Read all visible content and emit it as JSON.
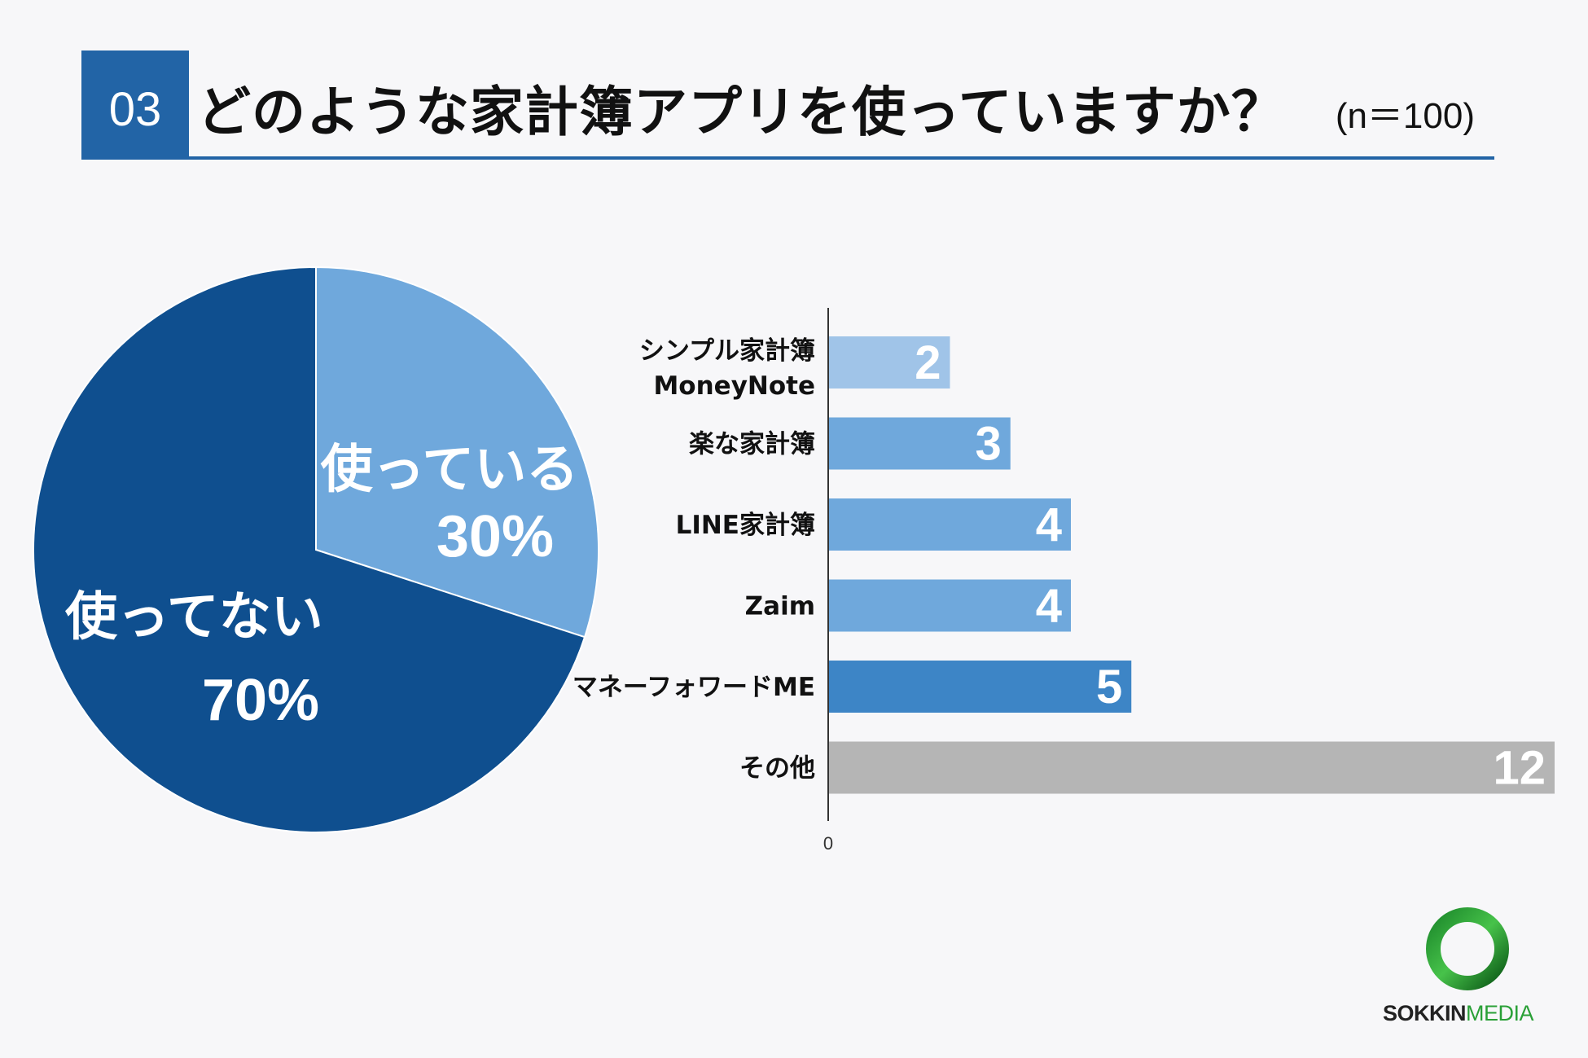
{
  "header": {
    "number": "03",
    "title": "どのような家計簿アプリを使っていますか？",
    "sample": "(n＝100)"
  },
  "colors": {
    "accent": "#2264a6",
    "pie_not_using": "#0f4f8f",
    "pie_using": "#6fa8dc",
    "bar_gray": "#b5b5b5"
  },
  "chart_data": [
    {
      "type": "pie",
      "slices": [
        {
          "label": "使っている",
          "value": 30,
          "value_label": "30%",
          "color": "#6fa8dc"
        },
        {
          "label": "使ってない",
          "value": 70,
          "value_label": "70%",
          "color": "#0f4f8f"
        }
      ]
    },
    {
      "type": "bar",
      "orientation": "horizontal",
      "categories": [
        {
          "line1": "シンプル家計簿",
          "line2": "MoneyNote"
        },
        {
          "line1": "楽な家計簿",
          "line2": ""
        },
        {
          "line1": "LINE家計簿",
          "line2": ""
        },
        {
          "line1": "Zaim",
          "line2": ""
        },
        {
          "line1": "マネーフォワードME",
          "line2": ""
        },
        {
          "line1": "その他",
          "line2": ""
        }
      ],
      "values": [
        2,
        3,
        4,
        4,
        5,
        12
      ],
      "colors": [
        "#a0c4e8",
        "#6fa8dc",
        "#6fa8dc",
        "#6fa8dc",
        "#3d85c6",
        "#b5b5b5"
      ],
      "xlim": [
        0,
        12
      ],
      "axis_tick": "0"
    }
  ],
  "logo": {
    "text_bold": "SOKKIN",
    "text_light": "MEDIA"
  }
}
